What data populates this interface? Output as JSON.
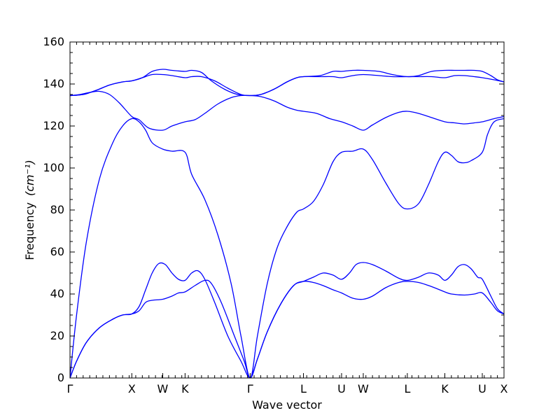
{
  "chart_data": {
    "type": "line",
    "xlabel": "Wave vector",
    "ylabel": "Frequency",
    "ylabel_unit": "(cm⁻¹)",
    "ylim": [
      0,
      160
    ],
    "yticks": [
      0,
      20,
      40,
      60,
      80,
      100,
      120,
      140,
      160
    ],
    "xlim": [
      0,
      6.6
    ],
    "xticks": [
      {
        "x": 0.0,
        "label": "Γ"
      },
      {
        "x": 0.94,
        "label": "X"
      },
      {
        "x": 1.41,
        "label": "W"
      },
      {
        "x": 1.75,
        "label": "K"
      },
      {
        "x": 2.74,
        "label": "Γ"
      },
      {
        "x": 3.55,
        "label": "L"
      },
      {
        "x": 4.13,
        "label": "U"
      },
      {
        "x": 4.46,
        "label": "W"
      },
      {
        "x": 5.13,
        "label": "L"
      },
      {
        "x": 5.7,
        "label": "K"
      },
      {
        "x": 6.27,
        "label": "U"
      },
      {
        "x": 6.6,
        "label": "X"
      }
    ],
    "series": [
      {
        "values": [
          [
            0,
            0
          ],
          [
            0.1,
            8
          ],
          [
            0.25,
            17
          ],
          [
            0.45,
            24
          ],
          [
            0.65,
            28
          ],
          [
            0.8,
            30
          ],
          [
            0.94,
            30.5
          ],
          [
            1.05,
            32
          ],
          [
            1.15,
            36
          ],
          [
            1.25,
            37
          ],
          [
            1.41,
            37.5
          ],
          [
            1.55,
            39
          ],
          [
            1.65,
            40.5
          ],
          [
            1.75,
            41
          ],
          [
            1.9,
            44
          ],
          [
            2.05,
            46.5
          ],
          [
            2.15,
            45
          ],
          [
            2.3,
            36
          ],
          [
            2.5,
            20
          ],
          [
            2.65,
            8
          ],
          [
            2.74,
            0
          ],
          [
            2.85,
            9
          ],
          [
            3.0,
            22
          ],
          [
            3.2,
            35
          ],
          [
            3.4,
            44
          ],
          [
            3.55,
            46
          ],
          [
            3.7,
            45.5
          ],
          [
            3.85,
            44
          ],
          [
            4.0,
            42
          ],
          [
            4.13,
            40.5
          ],
          [
            4.3,
            38
          ],
          [
            4.46,
            37.5
          ],
          [
            4.6,
            39
          ],
          [
            4.8,
            43
          ],
          [
            5.0,
            45.5
          ],
          [
            5.13,
            46
          ],
          [
            5.3,
            45.5
          ],
          [
            5.5,
            43.5
          ],
          [
            5.7,
            41
          ],
          [
            5.8,
            40
          ],
          [
            6.0,
            39.5
          ],
          [
            6.15,
            40
          ],
          [
            6.27,
            40.5
          ],
          [
            6.4,
            36
          ],
          [
            6.5,
            32
          ],
          [
            6.6,
            30.5
          ]
        ]
      },
      {
        "values": [
          [
            0,
            0
          ],
          [
            0.1,
            8
          ],
          [
            0.25,
            17
          ],
          [
            0.45,
            24
          ],
          [
            0.65,
            28
          ],
          [
            0.8,
            30
          ],
          [
            0.94,
            30.5
          ],
          [
            1.05,
            34
          ],
          [
            1.15,
            42
          ],
          [
            1.25,
            50
          ],
          [
            1.35,
            54.5
          ],
          [
            1.45,
            54
          ],
          [
            1.55,
            50
          ],
          [
            1.65,
            47
          ],
          [
            1.75,
            46.5
          ],
          [
            1.85,
            50
          ],
          [
            1.95,
            51
          ],
          [
            2.05,
            47
          ],
          [
            2.2,
            36
          ],
          [
            2.4,
            20
          ],
          [
            2.6,
            8
          ],
          [
            2.74,
            0
          ],
          [
            2.85,
            9
          ],
          [
            3.0,
            22
          ],
          [
            3.2,
            35
          ],
          [
            3.4,
            44
          ],
          [
            3.55,
            46
          ],
          [
            3.7,
            48
          ],
          [
            3.85,
            50
          ],
          [
            4.0,
            49
          ],
          [
            4.13,
            47
          ],
          [
            4.25,
            50
          ],
          [
            4.35,
            54
          ],
          [
            4.46,
            55
          ],
          [
            4.6,
            54
          ],
          [
            4.8,
            51
          ],
          [
            5.0,
            47.5
          ],
          [
            5.13,
            46.5
          ],
          [
            5.3,
            48
          ],
          [
            5.45,
            50
          ],
          [
            5.6,
            49
          ],
          [
            5.7,
            46.5
          ],
          [
            5.8,
            49
          ],
          [
            5.9,
            53
          ],
          [
            6.0,
            54
          ],
          [
            6.1,
            52
          ],
          [
            6.2,
            48
          ],
          [
            6.27,
            47
          ],
          [
            6.4,
            39
          ],
          [
            6.5,
            33
          ],
          [
            6.6,
            30.5
          ]
        ]
      },
      {
        "values": [
          [
            0,
            0
          ],
          [
            0.1,
            30
          ],
          [
            0.25,
            65
          ],
          [
            0.45,
            95
          ],
          [
            0.65,
            112
          ],
          [
            0.8,
            120
          ],
          [
            0.94,
            123.5
          ],
          [
            1.05,
            122
          ],
          [
            1.15,
            118
          ],
          [
            1.25,
            112
          ],
          [
            1.41,
            109
          ],
          [
            1.55,
            108
          ],
          [
            1.75,
            107.5
          ],
          [
            1.85,
            97
          ],
          [
            2.05,
            85
          ],
          [
            2.25,
            68
          ],
          [
            2.45,
            45
          ],
          [
            2.6,
            20
          ],
          [
            2.74,
            0
          ],
          [
            2.85,
            20
          ],
          [
            3.0,
            45
          ],
          [
            3.15,
            62
          ],
          [
            3.3,
            72
          ],
          [
            3.45,
            79
          ],
          [
            3.55,
            80.5
          ],
          [
            3.7,
            84
          ],
          [
            3.85,
            92
          ],
          [
            4.0,
            103
          ],
          [
            4.13,
            107.5
          ],
          [
            4.3,
            108
          ],
          [
            4.46,
            109
          ],
          [
            4.6,
            104
          ],
          [
            4.8,
            93
          ],
          [
            5.0,
            83
          ],
          [
            5.13,
            80.5
          ],
          [
            5.3,
            83
          ],
          [
            5.45,
            92
          ],
          [
            5.6,
            103
          ],
          [
            5.7,
            107.5
          ],
          [
            5.8,
            106
          ],
          [
            5.9,
            103
          ],
          [
            6.0,
            102.5
          ],
          [
            6.1,
            103.5
          ],
          [
            6.27,
            107.5
          ],
          [
            6.35,
            116
          ],
          [
            6.45,
            122
          ],
          [
            6.6,
            123.5
          ]
        ]
      },
      {
        "values": [
          [
            0,
            134.5
          ],
          [
            0.15,
            135
          ],
          [
            0.3,
            136
          ],
          [
            0.45,
            136.5
          ],
          [
            0.6,
            135
          ],
          [
            0.75,
            131
          ],
          [
            0.94,
            124.5
          ],
          [
            1.05,
            123
          ],
          [
            1.2,
            119
          ],
          [
            1.41,
            118
          ],
          [
            1.55,
            120
          ],
          [
            1.75,
            122
          ],
          [
            1.9,
            123
          ],
          [
            2.05,
            126
          ],
          [
            2.25,
            130.5
          ],
          [
            2.45,
            133.5
          ],
          [
            2.6,
            134.5
          ],
          [
            2.74,
            134.5
          ],
          [
            2.9,
            134
          ],
          [
            3.1,
            132
          ],
          [
            3.3,
            129
          ],
          [
            3.45,
            127.5
          ],
          [
            3.55,
            127
          ],
          [
            3.75,
            126
          ],
          [
            3.95,
            123.5
          ],
          [
            4.13,
            122
          ],
          [
            4.3,
            120
          ],
          [
            4.46,
            118
          ],
          [
            4.6,
            120.5
          ],
          [
            4.8,
            124
          ],
          [
            5.0,
            126.5
          ],
          [
            5.13,
            127
          ],
          [
            5.3,
            126
          ],
          [
            5.5,
            124
          ],
          [
            5.7,
            122
          ],
          [
            5.85,
            121.5
          ],
          [
            6.0,
            121
          ],
          [
            6.15,
            121.5
          ],
          [
            6.27,
            122
          ],
          [
            6.45,
            123.5
          ],
          [
            6.6,
            124.5
          ]
        ]
      },
      {
        "values": [
          [
            0,
            134.5
          ],
          [
            0.2,
            135
          ],
          [
            0.4,
            137
          ],
          [
            0.6,
            139.5
          ],
          [
            0.8,
            141
          ],
          [
            0.94,
            141.5
          ],
          [
            1.1,
            143
          ],
          [
            1.25,
            144.5
          ],
          [
            1.41,
            144.5
          ],
          [
            1.55,
            144
          ],
          [
            1.75,
            143
          ],
          [
            1.85,
            143.5
          ],
          [
            2.0,
            143.5
          ],
          [
            2.2,
            141.5
          ],
          [
            2.4,
            138
          ],
          [
            2.6,
            135
          ],
          [
            2.74,
            134.5
          ],
          [
            2.9,
            135
          ],
          [
            3.1,
            137.5
          ],
          [
            3.3,
            141
          ],
          [
            3.45,
            143
          ],
          [
            3.55,
            143.5
          ],
          [
            3.8,
            143.5
          ],
          [
            4.0,
            143.5
          ],
          [
            4.13,
            143
          ],
          [
            4.3,
            144
          ],
          [
            4.46,
            144.5
          ],
          [
            4.7,
            144
          ],
          [
            4.9,
            143.5
          ],
          [
            5.13,
            143.5
          ],
          [
            5.3,
            143.5
          ],
          [
            5.5,
            143.5
          ],
          [
            5.7,
            143
          ],
          [
            5.85,
            144
          ],
          [
            6.0,
            144
          ],
          [
            6.15,
            143.5
          ],
          [
            6.27,
            143
          ],
          [
            6.45,
            142
          ],
          [
            6.6,
            141
          ]
        ]
      },
      {
        "values": [
          [
            0,
            134.5
          ],
          [
            0.2,
            135
          ],
          [
            0.4,
            137
          ],
          [
            0.6,
            139.5
          ],
          [
            0.8,
            141
          ],
          [
            0.94,
            141.5
          ],
          [
            1.1,
            143
          ],
          [
            1.25,
            146
          ],
          [
            1.41,
            147
          ],
          [
            1.55,
            146.5
          ],
          [
            1.75,
            146
          ],
          [
            1.85,
            146.5
          ],
          [
            2.0,
            145.5
          ],
          [
            2.15,
            141.5
          ],
          [
            2.35,
            137.5
          ],
          [
            2.55,
            135
          ],
          [
            2.74,
            134.5
          ],
          [
            2.9,
            135
          ],
          [
            3.1,
            137.5
          ],
          [
            3.3,
            141
          ],
          [
            3.45,
            143
          ],
          [
            3.55,
            143.5
          ],
          [
            3.8,
            144
          ],
          [
            4.0,
            146
          ],
          [
            4.13,
            146
          ],
          [
            4.3,
            146.5
          ],
          [
            4.46,
            146.5
          ],
          [
            4.7,
            146
          ],
          [
            4.9,
            144.5
          ],
          [
            5.13,
            143.5
          ],
          [
            5.3,
            144
          ],
          [
            5.5,
            146
          ],
          [
            5.7,
            146.5
          ],
          [
            5.85,
            146.5
          ],
          [
            6.0,
            146.5
          ],
          [
            6.15,
            146.5
          ],
          [
            6.27,
            146
          ],
          [
            6.4,
            144
          ],
          [
            6.5,
            142
          ],
          [
            6.6,
            141
          ]
        ]
      }
    ]
  }
}
